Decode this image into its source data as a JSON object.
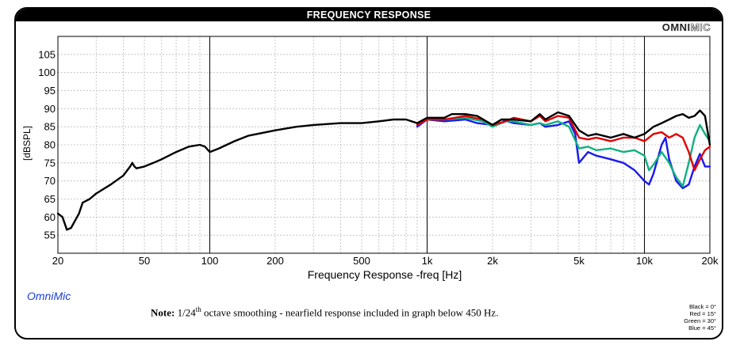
{
  "header": {
    "title": "FREQUENCY RESPONSE"
  },
  "logo": {
    "omni": "OMNI",
    "mic": "MIC"
  },
  "brand": "OmniMic",
  "note": {
    "bold": "Note:",
    "fraction": "1/24",
    "sup": "th",
    "rest": " octave smoothing - nearfield response included in graph below 450 Hz."
  },
  "legend": [
    "Black = 0°",
    "Red = 15°",
    "Green = 30°",
    "Blue = 45°"
  ],
  "chart_data": {
    "type": "line",
    "title": "FREQUENCY RESPONSE",
    "xlabel": "Frequency Response -freq [Hz]",
    "ylabel": "[dBSPL]",
    "xscale": "log",
    "xlim": [
      20,
      20000
    ],
    "ylim": [
      50,
      110
    ],
    "x_ticks": [
      20,
      50,
      100,
      200,
      500,
      1000,
      2000,
      5000,
      10000,
      20000
    ],
    "x_tick_labels": [
      "20",
      "50",
      "100",
      "200",
      "500",
      "1k",
      "2k",
      "5k",
      "10k",
      "20k"
    ],
    "y_ticks": [
      55,
      60,
      65,
      70,
      75,
      80,
      85,
      90,
      95,
      100,
      105
    ],
    "grid": true,
    "series": [
      {
        "name": "Black = 0°",
        "color": "#000000",
        "points": [
          [
            20,
            61
          ],
          [
            21,
            60
          ],
          [
            22,
            56.5
          ],
          [
            23,
            57
          ],
          [
            25,
            61
          ],
          [
            26,
            64
          ],
          [
            28,
            65
          ],
          [
            30,
            66.5
          ],
          [
            35,
            69
          ],
          [
            40,
            71.5
          ],
          [
            43,
            74
          ],
          [
            44,
            75
          ],
          [
            45,
            74
          ],
          [
            46,
            73.5
          ],
          [
            50,
            74
          ],
          [
            55,
            75
          ],
          [
            60,
            76
          ],
          [
            70,
            78
          ],
          [
            80,
            79.5
          ],
          [
            90,
            80
          ],
          [
            95,
            79.5
          ],
          [
            100,
            78
          ],
          [
            110,
            79
          ],
          [
            130,
            81
          ],
          [
            150,
            82.5
          ],
          [
            200,
            84
          ],
          [
            250,
            85
          ],
          [
            300,
            85.5
          ],
          [
            400,
            86
          ],
          [
            500,
            86
          ],
          [
            600,
            86.5
          ],
          [
            700,
            87
          ],
          [
            800,
            87
          ],
          [
            900,
            86
          ],
          [
            1000,
            87.5
          ],
          [
            1100,
            87.5
          ],
          [
            1200,
            87.5
          ],
          [
            1300,
            88.5
          ],
          [
            1500,
            88.5
          ],
          [
            1700,
            88
          ],
          [
            2000,
            85.5
          ],
          [
            2200,
            87
          ],
          [
            2500,
            87
          ],
          [
            3000,
            86.5
          ],
          [
            3300,
            88.5
          ],
          [
            3500,
            87
          ],
          [
            4000,
            89
          ],
          [
            4500,
            88
          ],
          [
            5000,
            84
          ],
          [
            5500,
            82.5
          ],
          [
            6000,
            83
          ],
          [
            7000,
            82
          ],
          [
            8000,
            83
          ],
          [
            9000,
            82
          ],
          [
            10000,
            83
          ],
          [
            11000,
            85
          ],
          [
            12000,
            86
          ],
          [
            13000,
            87
          ],
          [
            14000,
            88
          ],
          [
            15000,
            88.5
          ],
          [
            16000,
            87.5
          ],
          [
            17000,
            88
          ],
          [
            18000,
            89.5
          ],
          [
            19000,
            88
          ],
          [
            20000,
            80
          ]
        ]
      },
      {
        "name": "Red = 15°",
        "color": "#e00000",
        "points": [
          [
            900,
            85.5
          ],
          [
            1000,
            87
          ],
          [
            1200,
            87
          ],
          [
            1500,
            88
          ],
          [
            1800,
            87
          ],
          [
            2000,
            85.5
          ],
          [
            2300,
            86.5
          ],
          [
            2500,
            87.5
          ],
          [
            3000,
            86.5
          ],
          [
            3300,
            88
          ],
          [
            3500,
            86.5
          ],
          [
            4000,
            88
          ],
          [
            4500,
            87.5
          ],
          [
            5000,
            82
          ],
          [
            5500,
            81.5
          ],
          [
            6000,
            82
          ],
          [
            7000,
            81
          ],
          [
            8000,
            82
          ],
          [
            9000,
            82
          ],
          [
            10000,
            81
          ],
          [
            11000,
            83
          ],
          [
            12000,
            83.5
          ],
          [
            13000,
            82
          ],
          [
            14000,
            83
          ],
          [
            15000,
            82
          ],
          [
            16000,
            78
          ],
          [
            17000,
            73
          ],
          [
            18000,
            76
          ],
          [
            19000,
            78.5
          ],
          [
            20000,
            79.5
          ]
        ]
      },
      {
        "name": "Green = 30°",
        "color": "#10b080",
        "points": [
          [
            900,
            85.5
          ],
          [
            1000,
            87
          ],
          [
            1200,
            87
          ],
          [
            1500,
            87.5
          ],
          [
            1800,
            86.5
          ],
          [
            2000,
            85
          ],
          [
            2300,
            86.5
          ],
          [
            2500,
            86.5
          ],
          [
            3000,
            85.5
          ],
          [
            3300,
            86
          ],
          [
            3500,
            85.5
          ],
          [
            4000,
            86.5
          ],
          [
            4500,
            85
          ],
          [
            5000,
            79
          ],
          [
            5500,
            79.5
          ],
          [
            6000,
            78.5
          ],
          [
            7000,
            79
          ],
          [
            8000,
            78
          ],
          [
            9000,
            78.5
          ],
          [
            10000,
            77
          ],
          [
            10500,
            73
          ],
          [
            11000,
            74.5
          ],
          [
            12000,
            78
          ],
          [
            13000,
            75
          ],
          [
            14000,
            71
          ],
          [
            15000,
            68.5
          ],
          [
            16000,
            75
          ],
          [
            17000,
            82
          ],
          [
            18000,
            85.5
          ],
          [
            19000,
            83
          ],
          [
            20000,
            81
          ]
        ]
      },
      {
        "name": "Blue = 45°",
        "color": "#1a1aee",
        "points": [
          [
            900,
            85
          ],
          [
            1000,
            87
          ],
          [
            1200,
            86.5
          ],
          [
            1500,
            87
          ],
          [
            1700,
            86
          ],
          [
            2000,
            85.5
          ],
          [
            2200,
            87
          ],
          [
            2500,
            86
          ],
          [
            3000,
            85.5
          ],
          [
            3300,
            86
          ],
          [
            3500,
            85
          ],
          [
            4000,
            85.5
          ],
          [
            4500,
            86.5
          ],
          [
            4800,
            83
          ],
          [
            5000,
            75
          ],
          [
            5500,
            78
          ],
          [
            6000,
            77
          ],
          [
            7000,
            76
          ],
          [
            8000,
            75
          ],
          [
            9000,
            73
          ],
          [
            10000,
            70
          ],
          [
            10500,
            69
          ],
          [
            11000,
            72
          ],
          [
            12000,
            80
          ],
          [
            12500,
            82
          ],
          [
            13000,
            76
          ],
          [
            14000,
            70
          ],
          [
            15000,
            68
          ],
          [
            16000,
            69
          ],
          [
            17000,
            74
          ],
          [
            18000,
            77.5
          ],
          [
            19000,
            74
          ],
          [
            20000,
            74
          ]
        ]
      }
    ]
  }
}
